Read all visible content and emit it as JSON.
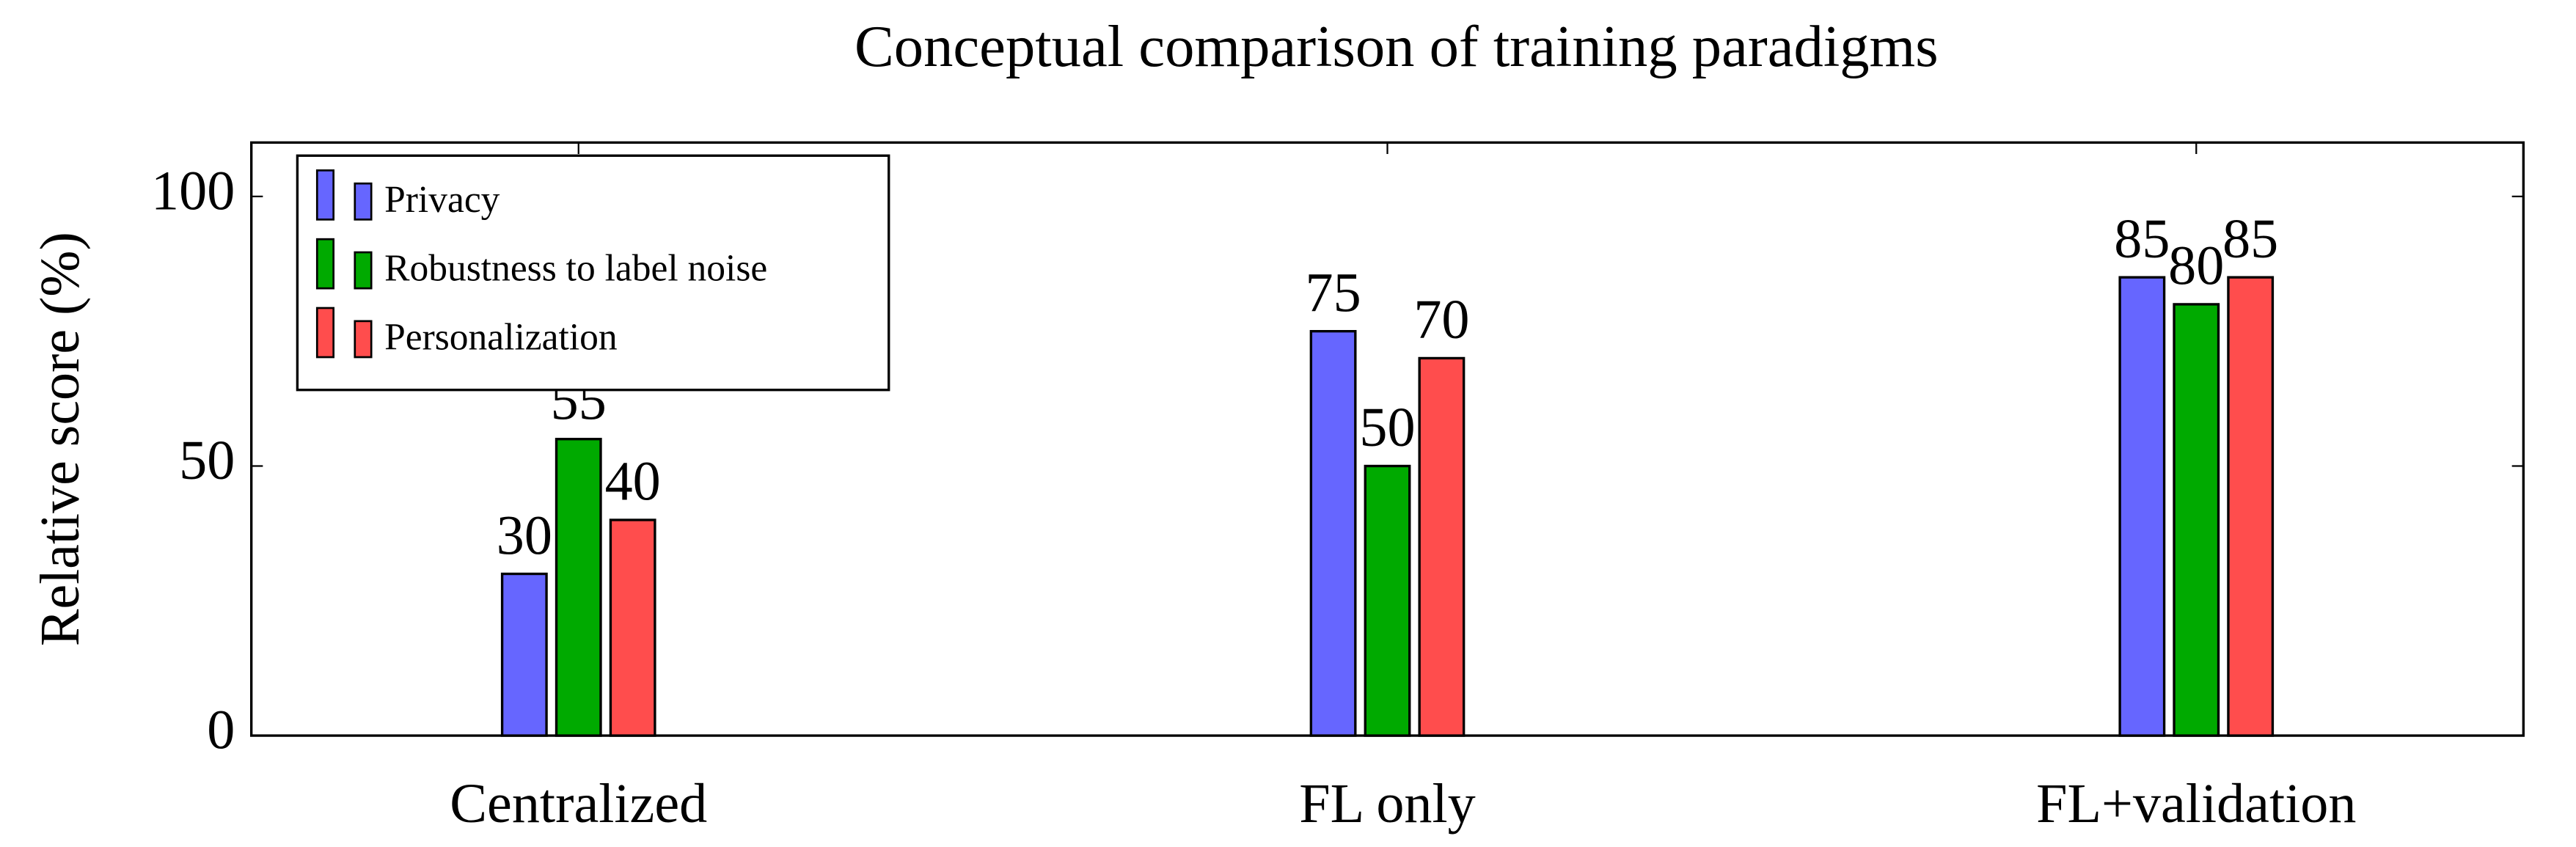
{
  "chart_data": {
    "type": "bar",
    "title": "Conceptual comparison of training paradigms",
    "y_label": "Relative score (%)",
    "categories": [
      "Centralized",
      "FL only",
      "FL+validation"
    ],
    "series": [
      {
        "name": "Privacy",
        "color": "#6666ff",
        "values": [
          30,
          75,
          85
        ]
      },
      {
        "name": "Robustness to label noise",
        "color": "#00aa00",
        "values": [
          55,
          50,
          80
        ]
      },
      {
        "name": "Personalization",
        "color": "#ff4d4d",
        "values": [
          40,
          70,
          85
        ]
      }
    ],
    "ylim": [
      0,
      110
    ],
    "yticks": [
      0,
      50,
      100
    ],
    "legend": "top left",
    "data_labels": true
  }
}
